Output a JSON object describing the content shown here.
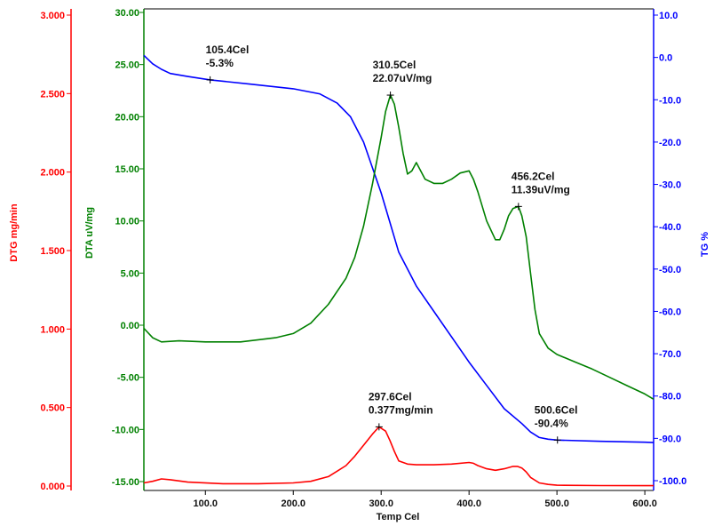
{
  "chart_data": {
    "type": "line",
    "x_axis": {
      "label": "Temp Cel",
      "range": [
        30,
        610
      ],
      "ticks": [
        "100.0",
        "200.0",
        "300.0",
        "400.0",
        "500.0",
        "600.0"
      ],
      "tick_values": [
        100,
        200,
        300,
        400,
        500,
        600
      ]
    },
    "axes": {
      "dtg": {
        "label": "DTG mg/min",
        "color": "#ff0000",
        "side": "left-outer",
        "range": [
          0.0,
          3.0
        ],
        "ticks": [
          "0.000",
          "0.500",
          "1.000",
          "1.500",
          "2.000",
          "2.500",
          "3.000"
        ],
        "tick_values": [
          0,
          0.5,
          1.0,
          1.5,
          2.0,
          2.5,
          3.0
        ]
      },
      "dta": {
        "label": "DTA uV/mg",
        "color": "#008000",
        "side": "left-inner",
        "range": [
          -15.0,
          30.0
        ],
        "ticks": [
          "-15.00",
          "-10.00",
          "-5.00",
          "0.00",
          "5.00",
          "10.00",
          "15.00",
          "20.00",
          "25.00",
          "30.00"
        ],
        "tick_values": [
          -15,
          -10,
          -5,
          0,
          5,
          10,
          15,
          20,
          25,
          30
        ]
      },
      "tg": {
        "label": "TG %",
        "color": "#0000ff",
        "side": "right",
        "range": [
          -100.0,
          10.0
        ],
        "ticks": [
          "-100.0",
          "-90.0",
          "-80.0",
          "-70.0",
          "-60.0",
          "-50.0",
          "-40.0",
          "-30.0",
          "-20.0",
          "-10.0",
          "0.0",
          "10.0"
        ],
        "tick_values": [
          -100,
          -90,
          -80,
          -70,
          -60,
          -50,
          -40,
          -30,
          -20,
          -10,
          0,
          10
        ]
      }
    },
    "series": [
      {
        "axis": "tg",
        "color": "#0000ff",
        "x": [
          30,
          40,
          50,
          60,
          80,
          105.4,
          150,
          200,
          230,
          250,
          265,
          280,
          290,
          300,
          310,
          320,
          340,
          360,
          380,
          400,
          420,
          440,
          460,
          470,
          480,
          490,
          500.6,
          550,
          600,
          610
        ],
        "y": [
          0.5,
          -1.5,
          -2.8,
          -3.8,
          -4.5,
          -5.3,
          -6.3,
          -7.4,
          -8.6,
          -10.8,
          -14.0,
          -20.0,
          -26.0,
          -32.0,
          -39.0,
          -46.0,
          -54.0,
          -60.0,
          -66.0,
          -72.0,
          -77.5,
          -83.0,
          -86.5,
          -88.5,
          -89.8,
          -90.2,
          -90.4,
          -90.7,
          -90.9,
          -91.0
        ]
      },
      {
        "axis": "dta",
        "color": "#008000",
        "x": [
          30,
          40,
          50,
          70,
          100,
          140,
          180,
          200,
          220,
          240,
          260,
          270,
          280,
          290,
          300,
          305,
          310.5,
          315,
          320,
          325,
          330,
          335,
          340,
          345,
          350,
          360,
          370,
          380,
          390,
          400,
          405,
          410,
          420,
          430,
          435,
          440,
          445,
          450,
          456.2,
          460,
          465,
          470,
          475,
          480,
          490,
          500,
          520,
          540,
          560,
          580,
          600,
          610
        ],
        "y": [
          -0.3,
          -1.2,
          -1.6,
          -1.5,
          -1.6,
          -1.6,
          -1.2,
          -0.8,
          0.2,
          2.0,
          4.5,
          6.5,
          9.5,
          13.5,
          18.0,
          20.5,
          22.07,
          21.2,
          19.0,
          16.5,
          14.5,
          14.8,
          15.6,
          14.8,
          14.0,
          13.6,
          13.6,
          14.0,
          14.6,
          14.8,
          14.0,
          12.8,
          10.0,
          8.2,
          8.2,
          9.2,
          10.5,
          11.2,
          11.39,
          10.5,
          8.5,
          5.0,
          1.5,
          -0.8,
          -2.2,
          -2.8,
          -3.5,
          -4.2,
          -5.0,
          -5.8,
          -6.6,
          -7.1
        ]
      },
      {
        "axis": "dtg",
        "color": "#ff0000",
        "x": [
          30,
          40,
          50,
          60,
          80,
          120,
          160,
          200,
          220,
          240,
          260,
          270,
          280,
          290,
          297.6,
          305,
          310,
          315,
          320,
          330,
          340,
          360,
          380,
          400,
          405,
          410,
          420,
          430,
          440,
          450,
          455,
          460,
          465,
          470,
          480,
          490,
          500,
          550,
          600,
          610
        ],
        "y": [
          0.02,
          0.03,
          0.045,
          0.04,
          0.025,
          0.015,
          0.015,
          0.02,
          0.03,
          0.06,
          0.13,
          0.19,
          0.26,
          0.33,
          0.377,
          0.35,
          0.29,
          0.22,
          0.16,
          0.14,
          0.135,
          0.135,
          0.14,
          0.15,
          0.145,
          0.13,
          0.11,
          0.1,
          0.11,
          0.125,
          0.125,
          0.115,
          0.09,
          0.055,
          0.02,
          0.01,
          0.005,
          0.003,
          0.002,
          0.002
        ]
      }
    ],
    "annotations": [
      {
        "axis": "tg",
        "x": 105.4,
        "y": -5.3,
        "line1": "105.4Cel",
        "line2": "-5.3%"
      },
      {
        "axis": "dta",
        "x": 310.5,
        "y": 22.07,
        "line1": "310.5Cel",
        "line2": "22.07uV/mg"
      },
      {
        "axis": "dta",
        "x": 456.2,
        "y": 11.39,
        "line1": "456.2Cel",
        "line2": "11.39uV/mg"
      },
      {
        "axis": "dtg",
        "x": 297.6,
        "y": 0.377,
        "line1": "297.6Cel",
        "line2": "0.377mg/min"
      },
      {
        "axis": "tg",
        "x": 500.6,
        "y": -90.4,
        "line1": "500.6Cel",
        "line2": "-90.4%"
      }
    ],
    "grid": false,
    "legend": "none"
  }
}
